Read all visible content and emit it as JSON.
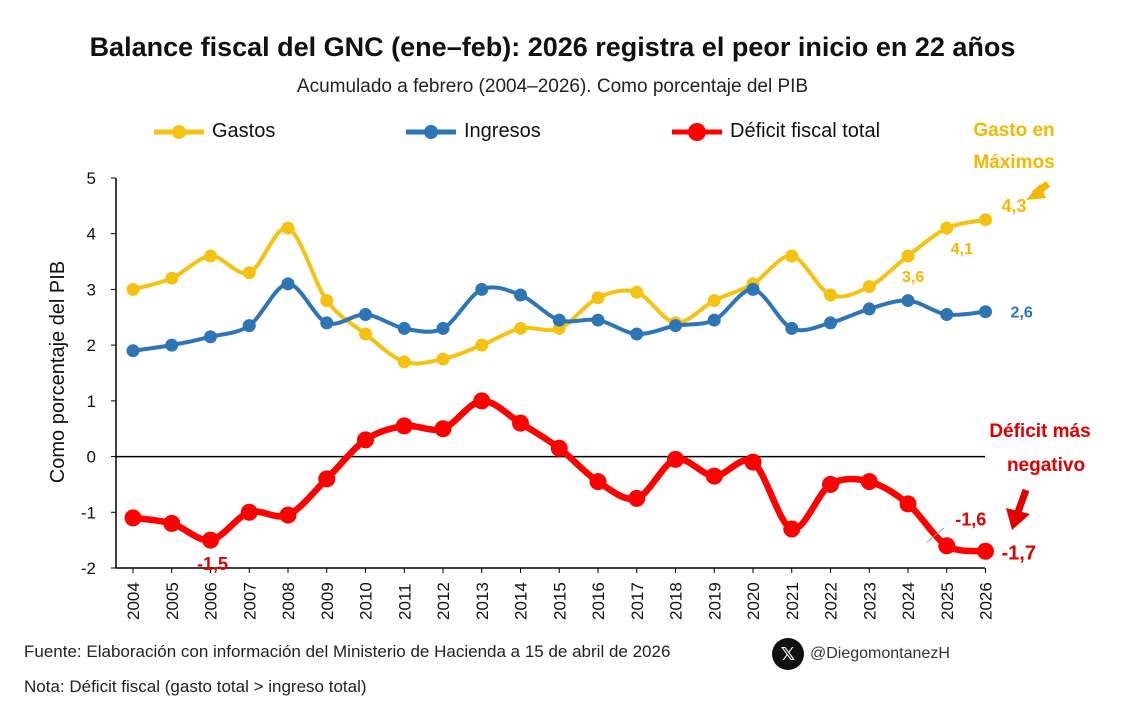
{
  "chart_data": {
    "type": "line",
    "title": "Balance fiscal del GNC (ene–feb): 2026 registra el peor inicio en 22 años",
    "subtitle": "Acumulado a febrero (2004–2026). Como porcentaje del PIB",
    "xlabel": "",
    "ylabel": "Como porcentaje del PIB",
    "ylim": [
      -2,
      5
    ],
    "yticks": [
      "5",
      "4",
      "3",
      "2",
      "1",
      "0",
      "-1",
      "-2"
    ],
    "ytick_values": [
      5,
      4,
      3,
      2,
      1,
      0,
      -1,
      -2
    ],
    "categories": [
      "2004",
      "2005",
      "2006",
      "2007",
      "2008",
      "2009",
      "2010",
      "2011",
      "2012",
      "2013",
      "2014",
      "2015",
      "2016",
      "2017",
      "2018",
      "2019",
      "2020",
      "2021",
      "2022",
      "2023",
      "2024",
      "2025",
      "2026"
    ],
    "legend_position": "top",
    "series": [
      {
        "name": "Gastos",
        "key": "gastos",
        "color": "#F5C211",
        "values": [
          3.0,
          3.2,
          3.6,
          3.3,
          4.1,
          2.8,
          2.2,
          1.7,
          1.75,
          2.0,
          2.3,
          2.3,
          2.85,
          2.95,
          2.4,
          2.8,
          3.1,
          3.6,
          2.9,
          3.05,
          3.6,
          4.1,
          4.25
        ]
      },
      {
        "name": "Ingresos",
        "key": "ingresos",
        "color": "#2E75B6",
        "values": [
          1.9,
          2.0,
          2.15,
          2.35,
          3.1,
          2.4,
          2.55,
          2.3,
          2.3,
          3.0,
          2.9,
          2.45,
          2.45,
          2.2,
          2.35,
          2.45,
          3.0,
          2.3,
          2.4,
          2.65,
          2.8,
          2.55,
          2.6
        ]
      },
      {
        "name": "Déficit fiscal total",
        "key": "deficit",
        "color": "#FF0000",
        "values": [
          -1.1,
          -1.2,
          -1.5,
          -1.0,
          -1.05,
          -0.4,
          0.3,
          0.55,
          0.5,
          1.0,
          0.6,
          0.15,
          -0.45,
          -0.75,
          -0.05,
          -0.35,
          -0.1,
          -1.3,
          -0.5,
          -0.45,
          -0.85,
          -1.6,
          -1.7
        ]
      }
    ],
    "data_labels": [
      {
        "series": "gastos",
        "index": 22,
        "text": "4,3"
      },
      {
        "series": "gastos",
        "index": 21,
        "text": "4,1"
      },
      {
        "series": "gastos",
        "index": 20,
        "text": "3,6"
      },
      {
        "series": "ingresos",
        "index": 22,
        "text": "2,6"
      },
      {
        "series": "deficit",
        "index": 2,
        "text": "-1,5"
      },
      {
        "series": "deficit",
        "index": 21,
        "text": "-1,6"
      },
      {
        "series": "deficit",
        "index": 22,
        "text": "-1,7"
      }
    ],
    "annotations": {
      "gasto_line1": "Gasto en",
      "gasto_line2": "Máximos",
      "deficit_line1": "Déficit más",
      "deficit_line2": "negativo"
    },
    "colors": {
      "gasto_annotation": "#F5B700",
      "deficit_annotation": "#E00000",
      "ingresos_label": "#2E75B6"
    }
  },
  "footer": {
    "source": "Fuente: Elaboración con información del Ministerio de Hacienda a 15 de abril de 2026",
    "note": "Nota: Déficit fiscal (gasto total > ingreso total)",
    "handle": "@DiegomontanezH",
    "x_logo": "𝕏",
    "x_logo_icon": "x-logo-icon"
  }
}
